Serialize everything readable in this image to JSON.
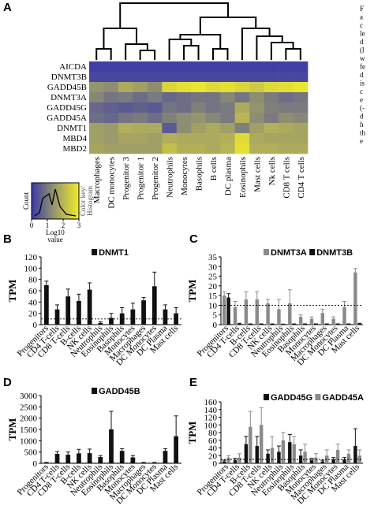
{
  "figure": {
    "right_text": [
      "F",
      "a",
      "c",
      "le",
      "d",
      "(l",
      "w",
      "fe",
      "d",
      "is",
      "c",
      "e",
      "(-",
      "d",
      "h",
      "th",
      "e"
    ],
    "colors": {
      "bar_dark": "#111111",
      "bar_gray": "#8a8a8a",
      "heat_low": "#3a3aa8",
      "heat_mid": "#9a9a6a",
      "heat_high": "#f0ea2a"
    }
  },
  "chart_data": [
    {
      "panel": "A",
      "type": "heatmap",
      "rows": [
        "AICDA",
        "DNMT3B",
        "GADD45B",
        "DNMT3A",
        "GADD45G",
        "GADD45A",
        "DNMT1",
        "MBD4",
        "MBD2"
      ],
      "columns": [
        "Macrophages",
        "DC monocytes",
        "Progenitor 3",
        "Progenitor 1",
        "Progenitor 2",
        "Neutrophils",
        "Monocytes",
        "Basophils",
        "B cells",
        "DC plasma",
        "Eosinophils",
        "Mast cells",
        "Nk cells",
        "CD8 T cells",
        "CD4 T cells"
      ],
      "values": [
        [
          0.1,
          0.1,
          0.1,
          0.1,
          0.1,
          0.1,
          0.1,
          0.1,
          0.1,
          0.1,
          0.1,
          0.1,
          0.1,
          0.1,
          0.1
        ],
        [
          0.2,
          0.2,
          0.2,
          0.2,
          0.2,
          0.2,
          0.2,
          0.2,
          0.2,
          0.2,
          0.2,
          0.2,
          0.2,
          0.2,
          0.2
        ],
        [
          1.4,
          1.3,
          1.8,
          1.6,
          1.3,
          2.6,
          2.8,
          2.9,
          2.7,
          2.8,
          2.6,
          2.4,
          2.7,
          2.8,
          2.9
        ],
        [
          1.2,
          0.9,
          1.0,
          0.8,
          1.0,
          0.7,
          0.8,
          0.9,
          0.9,
          1.2,
          0.9,
          1.3,
          1.0,
          0.8,
          0.9
        ],
        [
          0.7,
          0.6,
          0.5,
          0.6,
          0.5,
          0.9,
          0.8,
          1.1,
          0.9,
          1.0,
          1.8,
          1.4,
          1.1,
          1.0,
          1.0
        ],
        [
          0.8,
          0.7,
          0.9,
          1.0,
          0.8,
          1.1,
          1.3,
          1.4,
          1.2,
          1.0,
          2.0,
          1.3,
          1.0,
          1.3,
          1.2
        ],
        [
          1.6,
          1.5,
          1.9,
          1.8,
          1.8,
          0.5,
          1.3,
          1.6,
          1.8,
          1.6,
          1.1,
          1.6,
          1.9,
          1.8,
          1.7
        ],
        [
          1.6,
          1.5,
          1.7,
          1.7,
          1.6,
          1.9,
          1.8,
          1.8,
          1.8,
          1.9,
          2.7,
          1.8,
          1.7,
          1.7,
          1.7
        ],
        [
          1.7,
          1.6,
          1.6,
          1.6,
          1.6,
          2.2,
          1.9,
          1.9,
          1.8,
          2.0,
          2.8,
          1.9,
          1.9,
          1.8,
          1.8
        ]
      ],
      "color_key": {
        "title": "Color key/ Histogram",
        "ylabel": "Count",
        "xlabel": "Log10 value",
        "ticks": [
          "0",
          "1",
          "2",
          "3"
        ]
      }
    },
    {
      "panel": "B",
      "type": "bar",
      "ylabel": "TPM",
      "ylim": [
        0,
        120
      ],
      "yticks": [
        0,
        20,
        40,
        60,
        80,
        100,
        120
      ],
      "categories": [
        "Progenitors",
        "CD4 T-cells",
        "CD8 T-cells",
        "B-cells",
        "NK cells",
        "Neutrophils",
        "Eosinophils",
        "Basophils",
        "Monocytes",
        "Macrophages",
        "DC Monocytes",
        "DC Plasma",
        "Mast cells"
      ],
      "series": [
        {
          "name": "DNMT1",
          "color": "#111111",
          "values": [
            70,
            27,
            50,
            42,
            62,
            3,
            12,
            20,
            27,
            43,
            68,
            27,
            20
          ],
          "errors": [
            7,
            8,
            13,
            12,
            12,
            2,
            8,
            10,
            11,
            5,
            25,
            8,
            10
          ]
        }
      ],
      "threshold": 10
    },
    {
      "panel": "C",
      "type": "bar",
      "ylabel": "TPM",
      "ylim": [
        0,
        35
      ],
      "yticks": [
        0,
        5,
        10,
        15,
        20,
        25,
        30,
        35
      ],
      "categories": [
        "Progenitors",
        "CD4 T-cells",
        "B-cells",
        "CD8 T-cells",
        "NK cells",
        "Neutrophils",
        "Eosinophils",
        "Basophils",
        "Monocytes",
        "Macrophages",
        "DC Monocytes",
        "DC Plasma",
        "Mast cells"
      ],
      "series": [
        {
          "name": "DNMT3A",
          "color": "#8a8a8a",
          "values": [
            15,
            9,
            13,
            13,
            11,
            8,
            11,
            4,
            3,
            6,
            3,
            9,
            27
          ],
          "errors": [
            2,
            3,
            4,
            4,
            2,
            5,
            7,
            1,
            1,
            2,
            1,
            3,
            2
          ]
        },
        {
          "name": "DNMT3B",
          "color": "#111111",
          "values": [
            14,
            0.5,
            0.3,
            0.3,
            0.3,
            0.2,
            0.3,
            0.3,
            0.3,
            0.3,
            0.3,
            0.3,
            0.5
          ],
          "errors": [
            2,
            0.2,
            0.1,
            0.1,
            0.1,
            0.1,
            0.1,
            0.1,
            0.1,
            0.1,
            0.1,
            0.1,
            0.2
          ]
        }
      ],
      "threshold": 10
    },
    {
      "panel": "D",
      "type": "bar",
      "ylabel": "TPM",
      "ylim": [
        0,
        3000
      ],
      "yticks": [
        0,
        500,
        1000,
        1500,
        2000,
        2500,
        3000
      ],
      "categories": [
        "Progenitors",
        "CD4 T-cells",
        "CD8 T-cells",
        "B-cells",
        "NK cells",
        "Neutrophils",
        "Eosinophils",
        "Basophils",
        "Monocytes",
        "Macrophages",
        "DC Monocytes",
        "DC Plasma",
        "Mast cells"
      ],
      "series": [
        {
          "name": "GADD45B",
          "color": "#111111",
          "values": [
            30,
            420,
            380,
            440,
            450,
            280,
            1500,
            550,
            260,
            30,
            30,
            550,
            1200
          ],
          "errors": [
            10,
            100,
            120,
            180,
            180,
            60,
            800,
            100,
            80,
            10,
            10,
            100,
            900
          ]
        }
      ],
      "threshold": 10
    },
    {
      "panel": "E",
      "type": "bar",
      "ylabel": "TPM",
      "ylim": [
        0,
        160
      ],
      "yticks": [
        0,
        20,
        40,
        60,
        80,
        100,
        120,
        140,
        160
      ],
      "categories": [
        "Progenitors",
        "CD4 T-cells",
        "B-cells",
        "CD8 T-cells",
        "NK cells",
        "Neutrophils",
        "Eosinophils",
        "Basophils",
        "Monocytes",
        "Macrophages",
        "DC Monocytes",
        "DC Plasma",
        "Mast cells"
      ],
      "series": [
        {
          "name": "GADD45G",
          "color": "#111111",
          "values": [
            5,
            8,
            50,
            45,
            25,
            30,
            55,
            20,
            8,
            5,
            10,
            10,
            45
          ],
          "errors": [
            3,
            5,
            20,
            25,
            10,
            15,
            20,
            15,
            5,
            3,
            5,
            5,
            45
          ]
        },
        {
          "name": "GADD45A",
          "color": "#8a8a8a",
          "values": [
            15,
            15,
            95,
            100,
            40,
            60,
            50,
            30,
            15,
            20,
            35,
            25,
            20
          ],
          "errors": [
            5,
            10,
            40,
            45,
            30,
            20,
            20,
            20,
            10,
            15,
            15,
            10,
            15
          ]
        }
      ],
      "threshold": 10
    }
  ]
}
